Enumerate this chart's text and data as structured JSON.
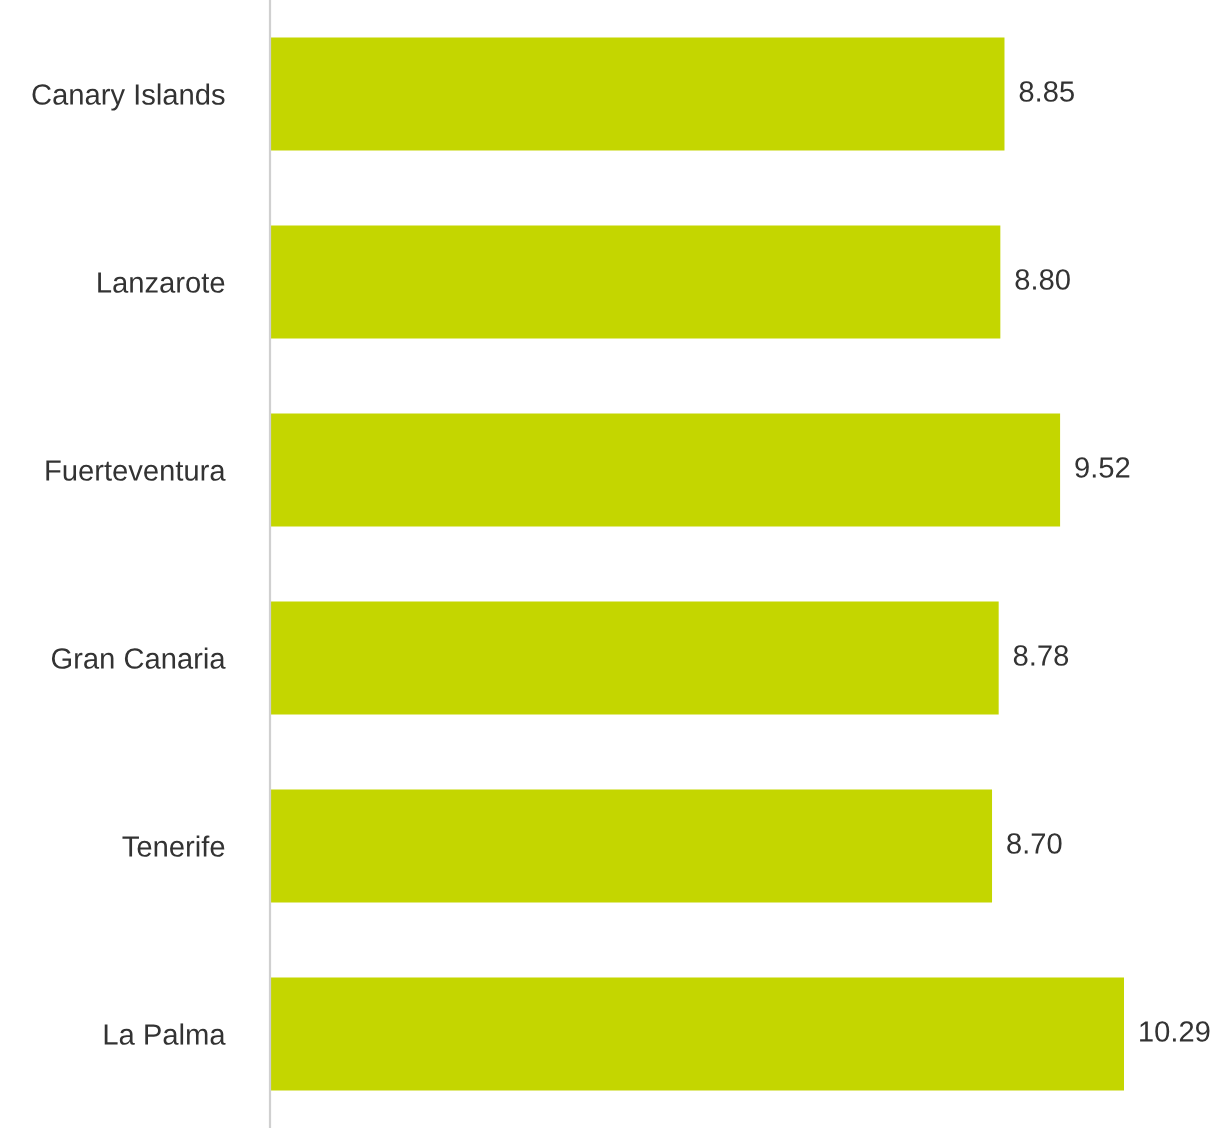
{
  "chart_data": {
    "type": "bar",
    "orientation": "horizontal",
    "categories": [
      "Canary Islands",
      "Lanzarote",
      "Fuerteventura",
      "Gran Canaria",
      "Tenerife",
      "La Palma"
    ],
    "values": [
      8.85,
      8.8,
      9.52,
      8.78,
      8.7,
      10.29
    ],
    "value_labels": [
      "8.85",
      "8.80",
      "9.52",
      "8.78",
      "8.70",
      "10.29"
    ],
    "color": "#c4d600",
    "grid": false,
    "legend": false
  }
}
